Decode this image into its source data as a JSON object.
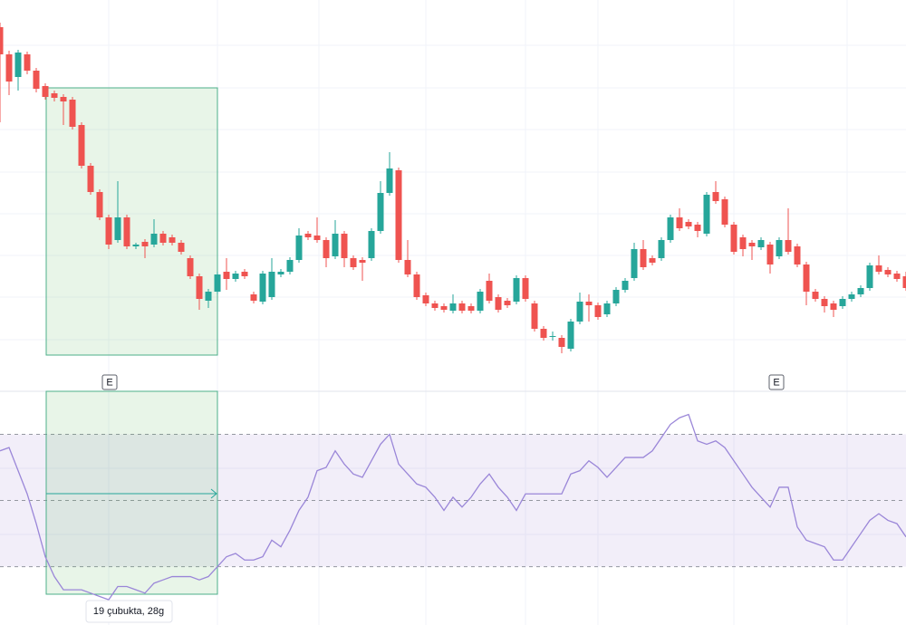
{
  "chart_data": [
    {
      "type": "candlestick",
      "up_color": "#26a69a",
      "down_color": "#ef5350",
      "ylim": [
        0,
        430
      ],
      "annotations": [
        "E",
        "E"
      ],
      "open": [
        400,
        370,
        345,
        370,
        352,
        335,
        327,
        323,
        320,
        292,
        247,
        218,
        190,
        165,
        190,
        158,
        163,
        160,
        172,
        168,
        162,
        145,
        125,
        98,
        108,
        130,
        122,
        130,
        105,
        97,
        102,
        127,
        130,
        143,
        172,
        170,
        165,
        147,
        172,
        145,
        143,
        145,
        175,
        217,
        242,
        143,
        127,
        104,
        95,
        92,
        87,
        95,
        92,
        87,
        120,
        102,
        98,
        97,
        123,
        95,
        67,
        58,
        57,
        45,
        75,
        97,
        93,
        83,
        95,
        110,
        123,
        155,
        145,
        145,
        165,
        190,
        185,
        182,
        172,
        218,
        210,
        182,
        168,
        162,
        157,
        160,
        147,
        165,
        158,
        138,
        108,
        100,
        95,
        92,
        100,
        105,
        112,
        137,
        132,
        128,
        125
      ],
      "high": [
        405,
        374,
        375,
        373,
        355,
        338,
        330,
        326,
        323,
        295,
        250,
        221,
        193,
        230,
        193,
        162,
        166,
        188,
        175,
        171,
        165,
        148,
        128,
        111,
        130,
        145,
        131,
        133,
        108,
        131,
        145,
        133,
        146,
        178,
        175,
        190,
        168,
        187,
        175,
        148,
        146,
        178,
        230,
        262,
        245,
        165,
        130,
        107,
        98,
        95,
        105,
        98,
        95,
        111,
        128,
        105,
        101,
        126,
        126,
        98,
        70,
        64,
        60,
        78,
        107,
        105,
        96,
        98,
        113,
        123,
        162,
        165,
        148,
        168,
        193,
        200,
        188,
        185,
        218,
        230,
        213,
        185,
        171,
        165,
        168,
        163,
        168,
        200,
        161,
        141,
        111,
        103,
        98,
        103,
        108,
        115,
        140,
        148,
        135,
        131,
        130
      ],
      "low": [
        295,
        325,
        330,
        348,
        328,
        320,
        318,
        292,
        287,
        244,
        215,
        187,
        155,
        162,
        155,
        155,
        145,
        157,
        159,
        159,
        149,
        122,
        88,
        90,
        105,
        110,
        119,
        122,
        95,
        94,
        99,
        124,
        127,
        140,
        165,
        162,
        135,
        144,
        135,
        132,
        120,
        142,
        172,
        214,
        140,
        124,
        99,
        92,
        87,
        85,
        84,
        84,
        84,
        84,
        95,
        85,
        90,
        94,
        97,
        64,
        54,
        54,
        40,
        42,
        72,
        75,
        77,
        80,
        92,
        107,
        120,
        132,
        137,
        142,
        162,
        175,
        177,
        168,
        169,
        205,
        179,
        149,
        147,
        143,
        154,
        128,
        144,
        149,
        135,
        93,
        97,
        85,
        80,
        89,
        97,
        102,
        109,
        127,
        124,
        119,
        109
      ],
      "close": [
        370,
        340,
        372,
        352,
        332,
        323,
        322,
        318,
        290,
        247,
        218,
        190,
        160,
        190,
        158,
        160,
        158,
        172,
        162,
        162,
        152,
        125,
        100,
        108,
        127,
        122,
        128,
        125,
        98,
        128,
        130,
        130,
        143,
        170,
        168,
        165,
        145,
        172,
        145,
        135,
        140,
        175,
        217,
        244,
        143,
        127,
        102,
        95,
        90,
        88,
        95,
        87,
        87,
        108,
        98,
        88,
        93,
        123,
        100,
        67,
        57,
        59,
        47,
        75,
        97,
        93,
        80,
        95,
        110,
        120,
        155,
        135,
        140,
        165,
        190,
        178,
        180,
        175,
        215,
        208,
        182,
        152,
        155,
        158,
        165,
        138,
        165,
        152,
        138,
        108,
        100,
        92,
        88,
        100,
        105,
        112,
        137,
        130,
        127,
        122,
        112
      ]
    },
    {
      "type": "line",
      "color": "#9a86d8",
      "ylim": [
        12.5,
        83
      ],
      "hlines": [
        70,
        50,
        30
      ],
      "band_color": "#7e57c2",
      "measure_label": "19 çubukta, 28g",
      "values": [
        65,
        66,
        59,
        52,
        43,
        33,
        27,
        23,
        23,
        23,
        22,
        21,
        20,
        24,
        24,
        23,
        22,
        25,
        26,
        27,
        27,
        27,
        26,
        27,
        30,
        33,
        34,
        32,
        32,
        33,
        38,
        36,
        41,
        47,
        51,
        59,
        60,
        65,
        61,
        58,
        57,
        62,
        67,
        70,
        61,
        58,
        55,
        54,
        51,
        47,
        51,
        48,
        51,
        55,
        58,
        54,
        51,
        47,
        52,
        52,
        52,
        52,
        52,
        58,
        59,
        62,
        60,
        57,
        60,
        63,
        63,
        63,
        65,
        69,
        73,
        75,
        76,
        68,
        67,
        68,
        66,
        62,
        58,
        54,
        51,
        48,
        54,
        54,
        42,
        38,
        37,
        36,
        32,
        32,
        36,
        40,
        44,
        46,
        44,
        43,
        39
      ]
    }
  ]
}
